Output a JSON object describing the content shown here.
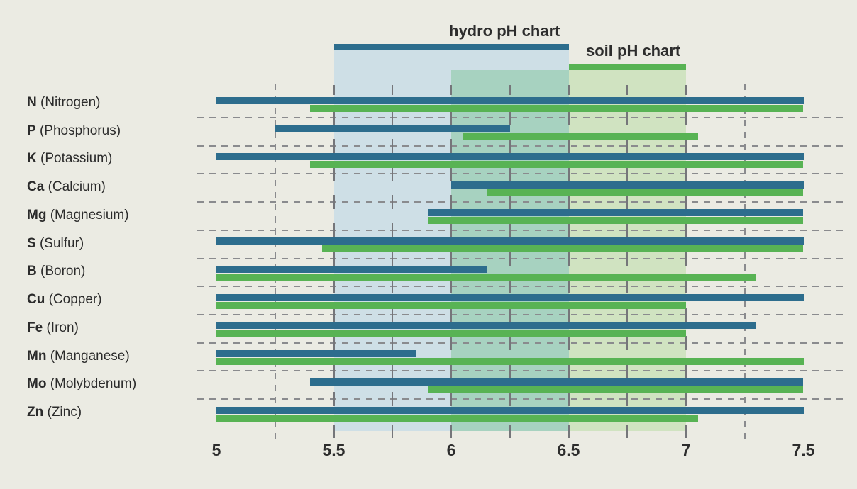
{
  "legend": {
    "hydro_label": "hydro pH chart",
    "soil_label": "soil pH chart"
  },
  "colors": {
    "background": "#ebebe3",
    "hydro_bar": "#2d6d8d",
    "soil_bar": "#58b354",
    "hydro_band": "#cedfe6",
    "overlap_band": "#a7d2c0",
    "soil_band": "#d0e3c1",
    "grid": "#8a8b8e",
    "tick": "#75767a",
    "text": "#2d2d2d"
  },
  "chart_data": {
    "type": "bar",
    "orientation": "horizontal-range",
    "title": "",
    "legend_position": "top",
    "grid": "dashed",
    "x_axis": {
      "min": 5.0,
      "max": 7.5,
      "tick_labels": [
        "5",
        "5.5",
        "6",
        "6.5",
        "7",
        "7.5"
      ],
      "tick_values": [
        5,
        5.5,
        6,
        6.5,
        7,
        7.5
      ],
      "minor_step": 0.25
    },
    "bands": {
      "hydro": [
        5.5,
        6.5
      ],
      "soil": [
        6.0,
        7.0
      ]
    },
    "series_names": [
      "hydro",
      "soil"
    ],
    "rows": [
      {
        "symbol": "N",
        "name": "(Nitrogen)",
        "hydro": [
          5.0,
          7.5
        ],
        "soil": [
          5.4,
          7.5
        ]
      },
      {
        "symbol": "P",
        "name": "(Phosphorus)",
        "hydro": [
          5.25,
          6.25
        ],
        "soil": [
          6.05,
          7.05
        ]
      },
      {
        "symbol": "K",
        "name": "(Potassium)",
        "hydro": [
          5.0,
          7.5
        ],
        "soil": [
          5.4,
          7.5
        ]
      },
      {
        "symbol": "Ca",
        "name": "(Calcium)",
        "hydro": [
          6.0,
          7.5
        ],
        "soil": [
          6.15,
          7.5
        ]
      },
      {
        "symbol": "Mg",
        "name": "(Magnesium)",
        "hydro": [
          5.9,
          7.5
        ],
        "soil": [
          5.9,
          7.5
        ]
      },
      {
        "symbol": "S",
        "name": "(Sulfur)",
        "hydro": [
          5.0,
          7.5
        ],
        "soil": [
          5.45,
          7.5
        ]
      },
      {
        "symbol": "B",
        "name": "(Boron)",
        "hydro": [
          5.0,
          6.15
        ],
        "soil": [
          5.0,
          7.3
        ]
      },
      {
        "symbol": "Cu",
        "name": "(Copper)",
        "hydro": [
          5.0,
          7.5
        ],
        "soil": [
          5.0,
          7.0
        ]
      },
      {
        "symbol": "Fe",
        "name": "(Iron)",
        "hydro": [
          5.0,
          7.3
        ],
        "soil": [
          5.0,
          7.0
        ]
      },
      {
        "symbol": "Mn",
        "name": "(Manganese)",
        "hydro": [
          5.0,
          5.85
        ],
        "soil": [
          5.0,
          7.5
        ]
      },
      {
        "symbol": "Mo",
        "name": "(Molybdenum)",
        "hydro": [
          5.4,
          7.5
        ],
        "soil": [
          5.9,
          7.5
        ]
      },
      {
        "symbol": "Zn",
        "name": "(Zinc)",
        "hydro": [
          5.0,
          7.5
        ],
        "soil": [
          5.0,
          7.05
        ]
      }
    ]
  }
}
